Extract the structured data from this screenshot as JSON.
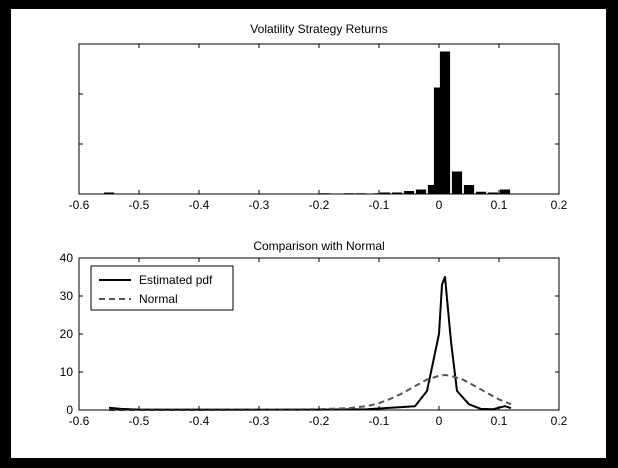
{
  "chart_data": [
    {
      "type": "bar",
      "title": "Volatility Strategy Returns",
      "xlabel": "",
      "ylabel": "",
      "xlim": [
        -0.6,
        0.2
      ],
      "ylim": [
        0,
        100
      ],
      "x_ticks": [
        "-0.6",
        "-0.5",
        "-0.4",
        "-0.3",
        "-0.2",
        "-0.1",
        "0",
        "0.1",
        "0.2"
      ],
      "y_ticks_shown": false,
      "bin_width": 0.02,
      "bins": [
        {
          "x": -0.55,
          "value": 1
        },
        {
          "x": -0.19,
          "value": 0.5
        },
        {
          "x": -0.15,
          "value": 0.5
        },
        {
          "x": -0.13,
          "value": 0.5
        },
        {
          "x": -0.1,
          "value": 0.5
        },
        {
          "x": -0.09,
          "value": 1
        },
        {
          "x": -0.07,
          "value": 1
        },
        {
          "x": -0.05,
          "value": 2
        },
        {
          "x": -0.03,
          "value": 3
        },
        {
          "x": -0.01,
          "value": 6
        },
        {
          "x": 0.0,
          "value": 71
        },
        {
          "x": 0.01,
          "value": 95
        },
        {
          "x": 0.03,
          "value": 15
        },
        {
          "x": 0.05,
          "value": 6
        },
        {
          "x": 0.07,
          "value": 1.5
        },
        {
          "x": 0.09,
          "value": 1
        },
        {
          "x": 0.11,
          "value": 3
        }
      ]
    },
    {
      "type": "line",
      "title": "Comparison with Normal",
      "xlabel": "",
      "ylabel": "",
      "xlim": [
        -0.6,
        0.2
      ],
      "ylim": [
        0,
        40
      ],
      "x_ticks": [
        "-0.6",
        "-0.5",
        "-0.4",
        "-0.3",
        "-0.2",
        "-0.1",
        "0",
        "0.1",
        "0.2"
      ],
      "y_ticks": [
        "0",
        "10",
        "20",
        "30",
        "40"
      ],
      "legend_position": "top-left",
      "series": [
        {
          "name": "Estimated pdf",
          "style": "solid",
          "x": [
            -0.55,
            -0.53,
            -0.5,
            -0.2,
            -0.12,
            -0.1,
            -0.08,
            -0.06,
            -0.04,
            -0.02,
            0.0,
            0.005,
            0.01,
            0.02,
            0.03,
            0.05,
            0.07,
            0.09,
            0.11,
            0.12
          ],
          "y": [
            0.6,
            0.3,
            0.1,
            0.1,
            0.2,
            0.4,
            0.6,
            0.8,
            1.0,
            5,
            20,
            33,
            35,
            18,
            5,
            1.5,
            0.3,
            0.2,
            1.0,
            0.5
          ]
        },
        {
          "name": "Normal",
          "style": "dashed",
          "x": [
            -0.55,
            -0.4,
            -0.3,
            -0.2,
            -0.15,
            -0.12,
            -0.1,
            -0.08,
            -0.06,
            -0.04,
            -0.02,
            0.0,
            0.01,
            0.02,
            0.04,
            0.06,
            0.08,
            0.1,
            0.12
          ],
          "y": [
            0.0,
            0.0,
            0.1,
            0.2,
            0.5,
            1.0,
            1.8,
            3.0,
            4.5,
            6.3,
            8.0,
            9.0,
            9.2,
            9.0,
            8.0,
            6.3,
            4.5,
            2.8,
            1.5
          ]
        }
      ]
    }
  ]
}
